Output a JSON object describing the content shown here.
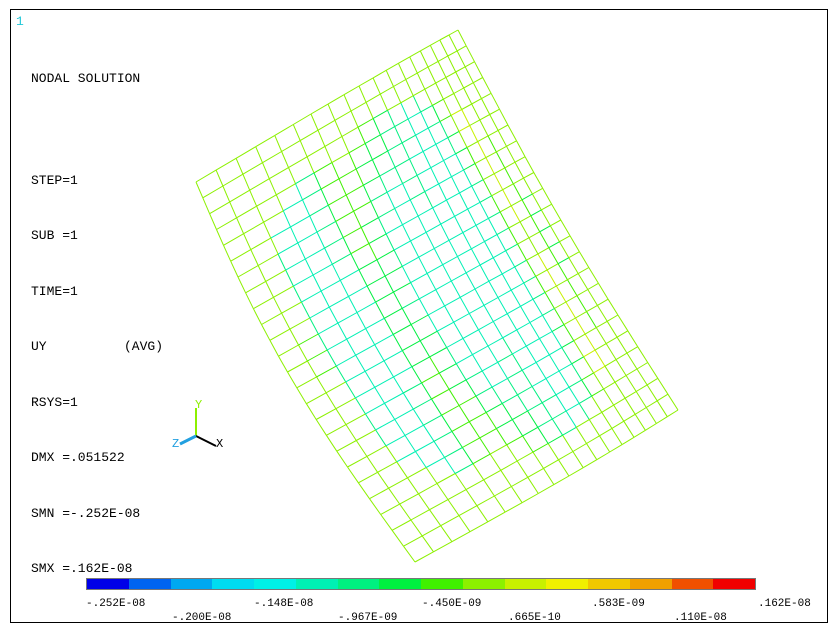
{
  "window_number": "1",
  "info": {
    "title": "NODAL SOLUTION",
    "step": "STEP=1",
    "sub": "SUB =1",
    "time": "TIME=1",
    "item": "UY",
    "avg": "(AVG)",
    "rsys": "RSYS=1",
    "dmx": "DMX =.051522",
    "smn": "SMN =-.252E-08",
    "smx": "SMX =.162E-08"
  },
  "triad": {
    "x": "X",
    "y": "Y",
    "z": "Z"
  },
  "legend": {
    "colors": [
      "#0000e8",
      "#0064f0",
      "#00a8f0",
      "#00dcf0",
      "#00f0e6",
      "#00f0b4",
      "#00f080",
      "#00f040",
      "#40f000",
      "#8cf000",
      "#c8f000",
      "#f0f000",
      "#f0c800",
      "#f0a000",
      "#f05000",
      "#f00000"
    ],
    "top_labels": [
      "-.252E-08",
      "-.148E-08",
      "-.450E-09",
      ".583E-09",
      ".162E-08"
    ],
    "bottom_labels": [
      "-.200E-08",
      "-.967E-09",
      ".665E-10",
      ".110E-08"
    ]
  }
}
